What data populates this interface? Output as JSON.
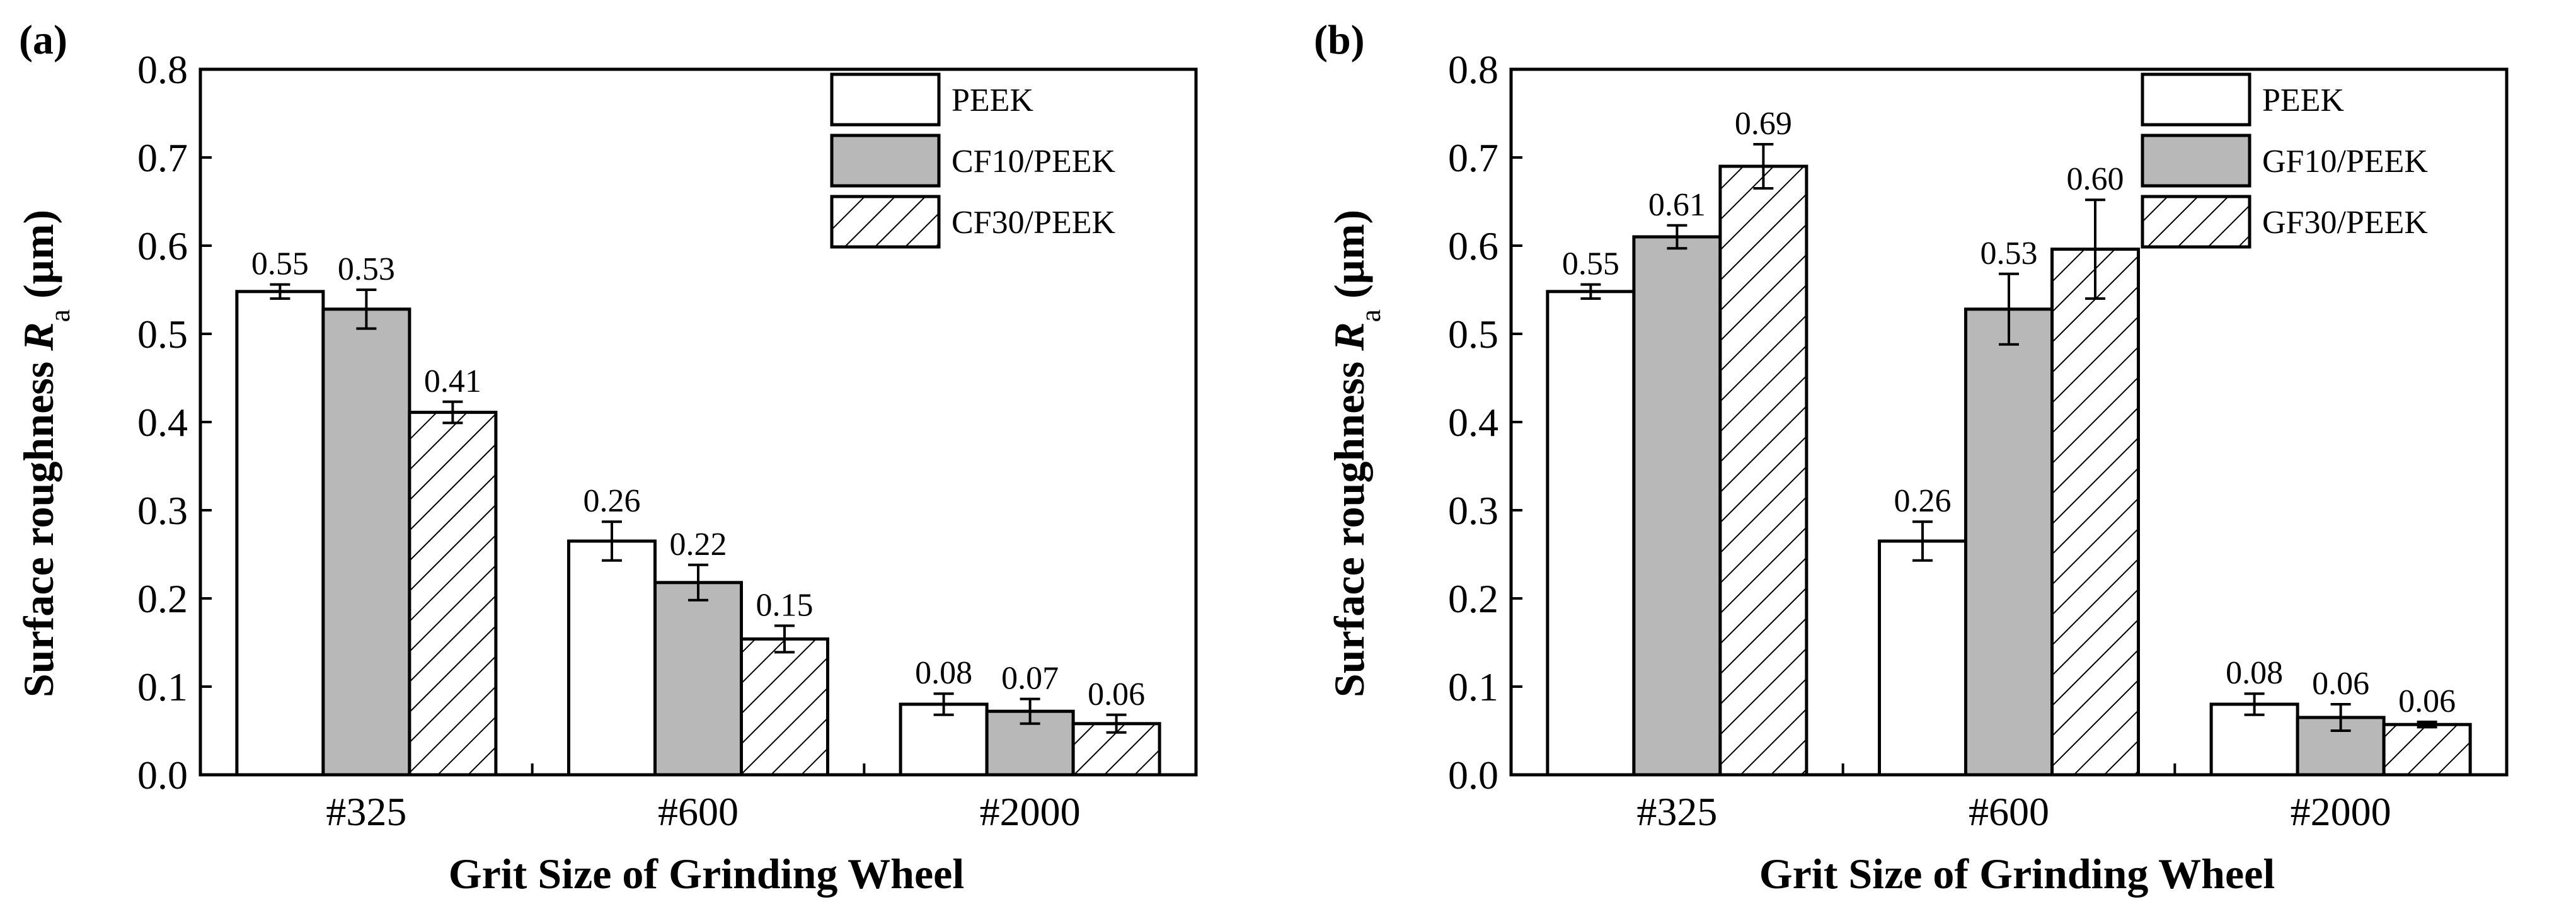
{
  "figure": {
    "xlabel": "Grit Size of Grinding Wheel",
    "ylabel_main": "Surface roughness ",
    "ylabel_symbol": "R",
    "ylabel_subscript": "a",
    "ylabel_unit": " (µm)",
    "colors": {
      "PEEK": "#ffffff",
      "CF10/PEEK": "#b8b8b8",
      "GF10/PEEK": "#b8b8b8",
      "hatched": "#ffffff",
      "stroke": "#000000"
    }
  },
  "chart_data": [
    {
      "type": "bar",
      "panel_label": "(a)",
      "xlabel": "Grit Size of Grinding Wheel",
      "ylabel": "Surface roughness Ra (µm)",
      "ylim": [
        0.0,
        0.8
      ],
      "yticks": [
        "0.0",
        "0.1",
        "0.2",
        "0.3",
        "0.4",
        "0.5",
        "0.6",
        "0.7",
        "0.8"
      ],
      "categories": [
        "#325",
        "#600",
        "#2000"
      ],
      "legend_position": "top-right",
      "series": [
        {
          "name": "PEEK",
          "style": "white",
          "values": [
            0.548,
            0.265,
            0.08
          ],
          "errors": [
            0.008,
            0.022,
            0.012
          ],
          "labels": [
            "0.55",
            "0.26",
            "0.08"
          ]
        },
        {
          "name": "CF10/PEEK",
          "style": "gray",
          "values": [
            0.528,
            0.218,
            0.072
          ],
          "errors": [
            0.022,
            0.02,
            0.014
          ],
          "labels": [
            "0.53",
            "0.22",
            "0.07"
          ]
        },
        {
          "name": "CF30/PEEK",
          "style": "hatch",
          "values": [
            0.411,
            0.154,
            0.058
          ],
          "errors": [
            0.012,
            0.015,
            0.01
          ],
          "labels": [
            "0.41",
            "0.15",
            "0.06"
          ]
        }
      ]
    },
    {
      "type": "bar",
      "panel_label": "(b)",
      "xlabel": "Grit Size of Grinding Wheel",
      "ylabel": "Surface roughness Ra (µm)",
      "ylim": [
        0.0,
        0.8
      ],
      "yticks": [
        "0.0",
        "0.1",
        "0.2",
        "0.3",
        "0.4",
        "0.5",
        "0.6",
        "0.7",
        "0.8"
      ],
      "categories": [
        "#325",
        "#600",
        "#2000"
      ],
      "legend_position": "top-right",
      "series": [
        {
          "name": "PEEK",
          "style": "white",
          "values": [
            0.548,
            0.265,
            0.08
          ],
          "errors": [
            0.008,
            0.022,
            0.012
          ],
          "labels": [
            "0.55",
            "0.26",
            "0.08"
          ]
        },
        {
          "name": "GF10/PEEK",
          "style": "gray",
          "values": [
            0.61,
            0.528,
            0.065
          ],
          "errors": [
            0.013,
            0.04,
            0.015
          ],
          "labels": [
            "0.61",
            "0.53",
            "0.06"
          ]
        },
        {
          "name": "GF30/PEEK",
          "style": "hatch",
          "values": [
            0.69,
            0.596,
            0.057
          ],
          "errors": [
            0.025,
            0.056,
            0.003
          ],
          "labels": [
            "0.69",
            "0.60",
            "0.06"
          ]
        }
      ]
    }
  ]
}
